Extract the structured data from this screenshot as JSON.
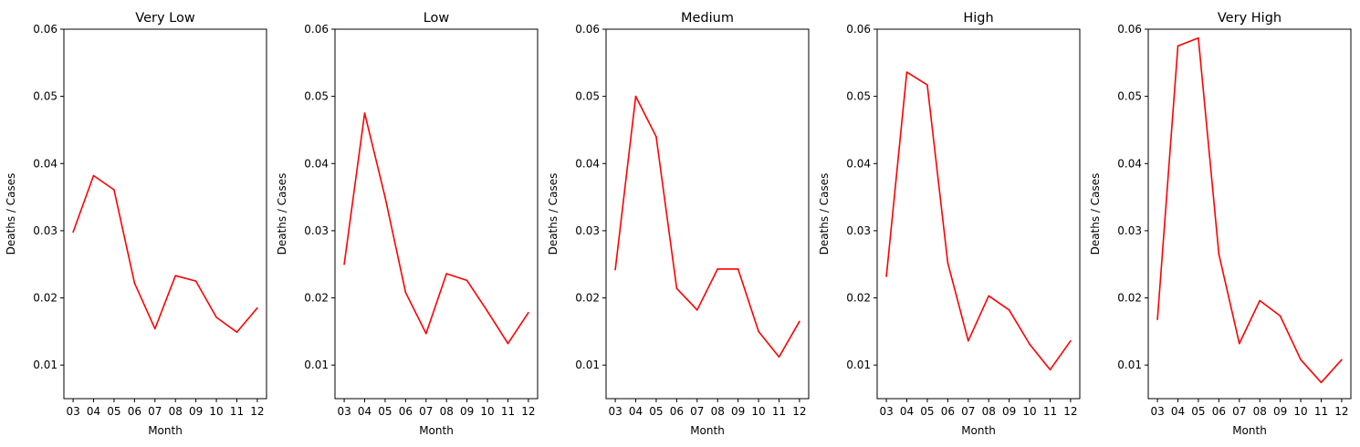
{
  "chart_data": [
    {
      "type": "line",
      "title": "Very Low",
      "xlabel": "Month",
      "ylabel": "Deaths / Cases",
      "categories": [
        "03",
        "04",
        "05",
        "06",
        "07",
        "08",
        "09",
        "10",
        "11",
        "12"
      ],
      "ylim": [
        0.005,
        0.06
      ],
      "yticks": [
        "0.01",
        "0.02",
        "0.03",
        "0.04",
        "0.05",
        "0.06"
      ],
      "color": "#ff0000",
      "grid": false,
      "values": [
        0.0298,
        0.0382,
        0.0361,
        0.0222,
        0.0154,
        0.0233,
        0.0225,
        0.0171,
        0.0149,
        0.0185
      ]
    },
    {
      "type": "line",
      "title": "Low",
      "xlabel": "Month",
      "ylabel": "Deaths / Cases",
      "categories": [
        "03",
        "04",
        "05",
        "06",
        "07",
        "08",
        "09",
        "10",
        "11",
        "12"
      ],
      "ylim": [
        0.005,
        0.06
      ],
      "yticks": [
        "0.01",
        "0.02",
        "0.03",
        "0.04",
        "0.05",
        "0.06"
      ],
      "color": "#ff0000",
      "grid": false,
      "values": [
        0.025,
        0.0475,
        0.035,
        0.0208,
        0.0147,
        0.0236,
        0.0226,
        0.018,
        0.0132,
        0.0178
      ]
    },
    {
      "type": "line",
      "title": "Medium",
      "xlabel": "Month",
      "ylabel": "Deaths / Cases",
      "categories": [
        "03",
        "04",
        "05",
        "06",
        "07",
        "08",
        "09",
        "10",
        "11",
        "12"
      ],
      "ylim": [
        0.005,
        0.06
      ],
      "yticks": [
        "0.01",
        "0.02",
        "0.03",
        "0.04",
        "0.05",
        "0.06"
      ],
      "color": "#ff0000",
      "grid": false,
      "values": [
        0.0242,
        0.05,
        0.044,
        0.0214,
        0.0182,
        0.0243,
        0.0243,
        0.015,
        0.0112,
        0.0165
      ]
    },
    {
      "type": "line",
      "title": "High",
      "xlabel": "Month",
      "ylabel": "Deaths / Cases",
      "categories": [
        "03",
        "04",
        "05",
        "06",
        "07",
        "08",
        "09",
        "10",
        "11",
        "12"
      ],
      "ylim": [
        0.005,
        0.06
      ],
      "yticks": [
        "0.01",
        "0.02",
        "0.03",
        "0.04",
        "0.05",
        "0.06"
      ],
      "color": "#ff0000",
      "grid": false,
      "values": [
        0.0232,
        0.0536,
        0.0517,
        0.0252,
        0.0136,
        0.0203,
        0.0182,
        0.0131,
        0.0093,
        0.0136
      ]
    },
    {
      "type": "line",
      "title": "Very High",
      "xlabel": "Month",
      "ylabel": "Deaths / Cases",
      "categories": [
        "03",
        "04",
        "05",
        "06",
        "07",
        "08",
        "09",
        "10",
        "11",
        "12"
      ],
      "ylim": [
        0.005,
        0.06
      ],
      "yticks": [
        "0.01",
        "0.02",
        "0.03",
        "0.04",
        "0.05",
        "0.06"
      ],
      "color": "#ff0000",
      "grid": false,
      "values": [
        0.0168,
        0.0575,
        0.0587,
        0.0265,
        0.0132,
        0.0196,
        0.0173,
        0.0108,
        0.0074,
        0.0108
      ]
    }
  ]
}
